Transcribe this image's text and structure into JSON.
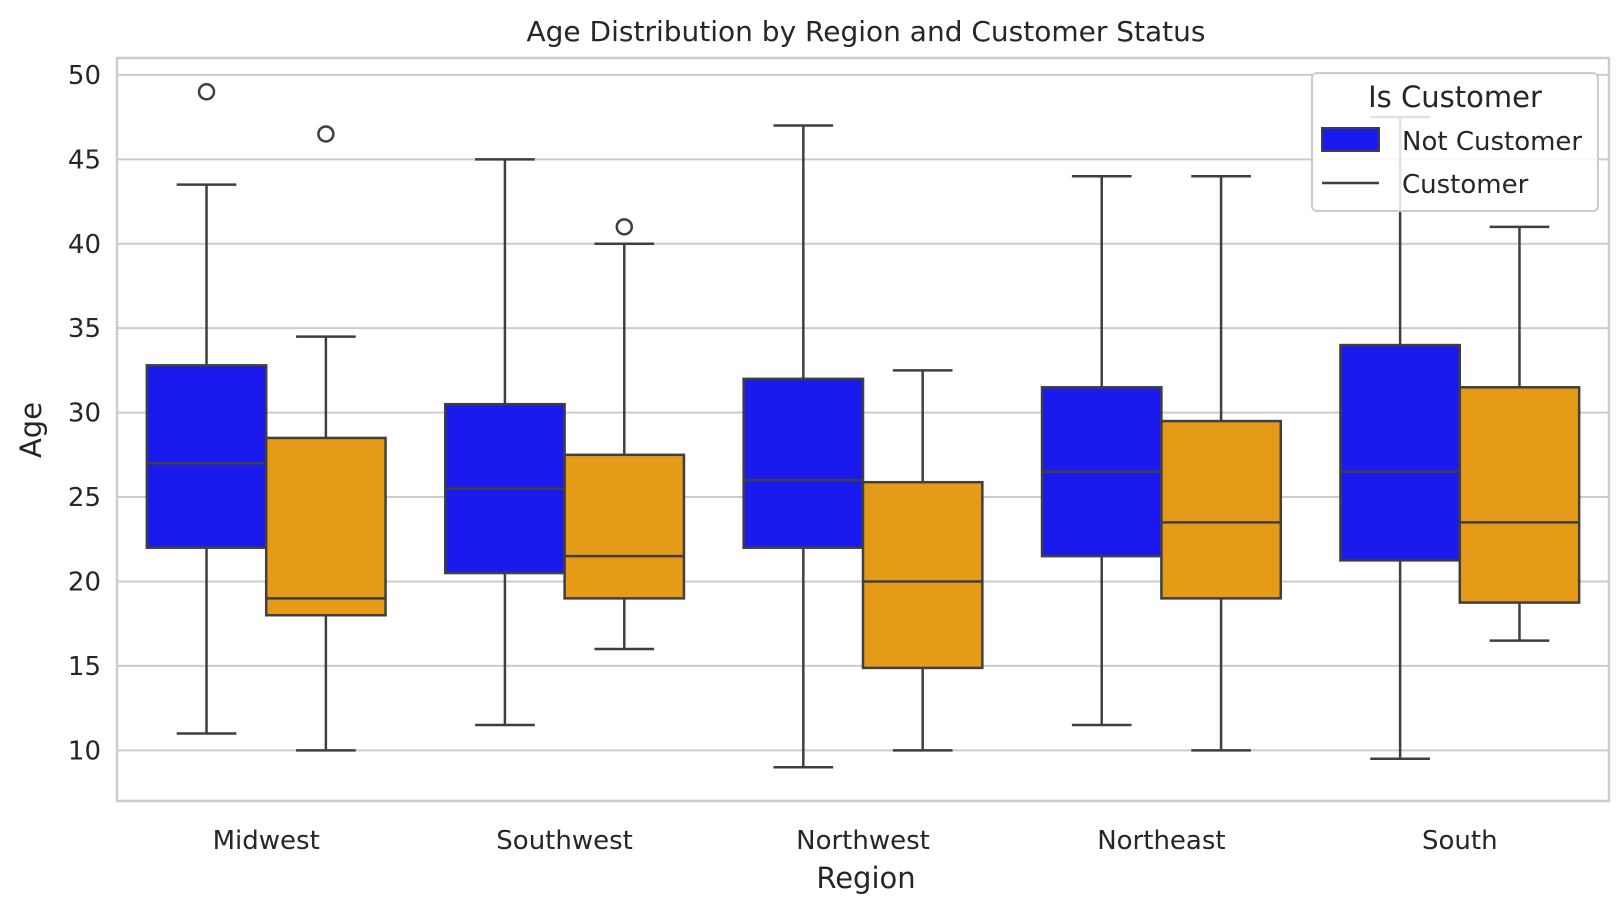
{
  "chart_data": {
    "type": "box",
    "title": "Age Distribution by Region and Customer Status",
    "xlabel": "Region",
    "ylabel": "Age",
    "categories": [
      "Midwest",
      "Southwest",
      "Northwest",
      "Northeast",
      "South"
    ],
    "ylim": [
      7,
      51
    ],
    "yticks": [
      10,
      15,
      20,
      25,
      30,
      35,
      40,
      45,
      50
    ],
    "grid": true,
    "legend": {
      "title": "Is Customer",
      "placement": "top-right",
      "entries": [
        "Not Customer",
        "Customer"
      ]
    },
    "series": [
      {
        "name": "Not Customer",
        "color": "#1a1aee",
        "boxes": [
          {
            "whisker_low": 11,
            "q1": 22,
            "median": 27,
            "q3": 32.8,
            "whisker_high": 43.5,
            "outliers": [
              49
            ]
          },
          {
            "whisker_low": 11.5,
            "q1": 20.5,
            "median": 25.5,
            "q3": 30.5,
            "whisker_high": 45,
            "outliers": []
          },
          {
            "whisker_low": 9,
            "q1": 22,
            "median": 26,
            "q3": 32,
            "whisker_high": 47,
            "outliers": []
          },
          {
            "whisker_low": 11.5,
            "q1": 21.5,
            "median": 26.5,
            "q3": 31.5,
            "whisker_high": 44,
            "outliers": []
          },
          {
            "whisker_low": 9.5,
            "q1": 21.25,
            "median": 26.5,
            "q3": 34,
            "whisker_high": 47.5,
            "outliers": []
          }
        ]
      },
      {
        "name": "Customer",
        "color": "#e69b18",
        "boxes": [
          {
            "whisker_low": 10,
            "q1": 18,
            "median": 19,
            "q3": 28.5,
            "whisker_high": 34.5,
            "outliers": [
              46.5
            ]
          },
          {
            "whisker_low": 16,
            "q1": 19,
            "median": 21.5,
            "q3": 27.5,
            "whisker_high": 40,
            "outliers": [
              41
            ]
          },
          {
            "whisker_low": 10,
            "q1": 14.88,
            "median": 20,
            "q3": 25.88,
            "whisker_high": 32.5,
            "outliers": []
          },
          {
            "whisker_low": 10,
            "q1": 19,
            "median": 23.5,
            "q3": 29.5,
            "whisker_high": 44,
            "outliers": []
          },
          {
            "whisker_low": 16.5,
            "q1": 18.75,
            "median": 23.5,
            "q3": 31.5,
            "whisker_high": 41,
            "outliers": []
          }
        ]
      }
    ]
  }
}
